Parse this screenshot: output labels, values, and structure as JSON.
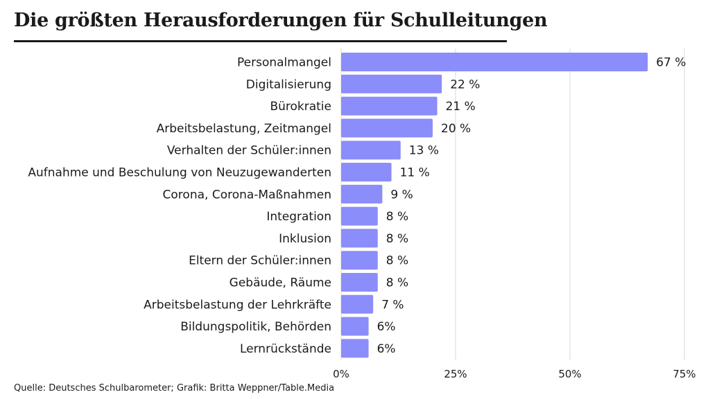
{
  "chart_data": {
    "type": "bar",
    "orientation": "horizontal",
    "title": "Die größten Herausforderungen für Schulleitungen",
    "categories": [
      "Personalmangel",
      "Digitalisierung",
      "Bürokratie",
      "Arbeitsbelastung, Zeitmangel",
      "Verhalten der Schüler:innen",
      "Aufnahme und Beschulung von Neuzugewanderten",
      "Corona, Corona-Maßnahmen",
      "Integration",
      "Inklusion",
      "Eltern der Schüler:innen",
      "Gebäude, Räume",
      "Arbeitsbelastung der Lehrkräfte",
      "Bildungspolitik, Behörden",
      "Lernrückstände"
    ],
    "values": [
      67,
      22,
      21,
      20,
      13,
      11,
      9,
      8,
      8,
      8,
      8,
      7,
      6,
      6
    ],
    "value_labels": [
      "67 %",
      "22 %",
      "21 %",
      "20 %",
      "13 %",
      "11 %",
      "9 %",
      "8 %",
      "8 %",
      "8 %",
      "8 %",
      "7 %",
      "6%",
      "6%"
    ],
    "xlim": [
      0,
      75
    ],
    "xticks": [
      0,
      25,
      50,
      75
    ],
    "xtick_labels": [
      "0%",
      "25%",
      "50%",
      "75%"
    ],
    "grid": "vertical",
    "bar_color": "#8b8dfb",
    "source": "Quelle: Deutsches Schulbarometer; Grafik: Britta Weppner/Table.Media"
  }
}
